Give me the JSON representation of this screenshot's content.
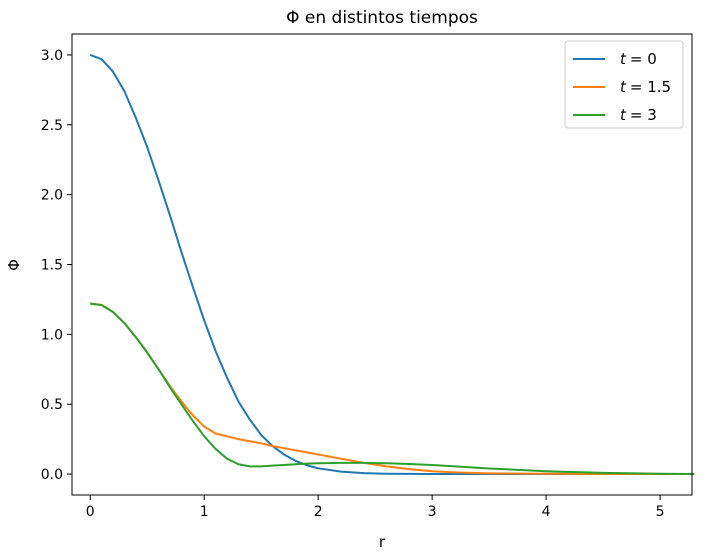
{
  "chart_data": {
    "type": "line",
    "title": "Φ en distintos tiempos",
    "xlabel": "r",
    "ylabel": "Φ",
    "xlim": [
      -0.16,
      5.28
    ],
    "ylim": [
      -0.15,
      3.15
    ],
    "xticks": [
      0,
      1,
      2,
      3,
      4,
      5
    ],
    "yticks": [
      0.0,
      0.5,
      1.0,
      1.5,
      2.0,
      2.5,
      3.0
    ],
    "xtick_labels": [
      "0",
      "1",
      "2",
      "3",
      "4",
      "5"
    ],
    "ytick_labels": [
      "0.0",
      "0.5",
      "1.0",
      "1.5",
      "2.0",
      "2.5",
      "3.0"
    ],
    "grid": false,
    "legend_position": "top-right",
    "series": [
      {
        "name": "t = 0",
        "legend_var": "t",
        "legend_value": "= 0",
        "color": "#1f77b4",
        "x": [
          0,
          0.1,
          0.2,
          0.3,
          0.4,
          0.5,
          0.6,
          0.7,
          0.8,
          0.9,
          1.0,
          1.1,
          1.2,
          1.3,
          1.4,
          1.5,
          1.6,
          1.7,
          1.8,
          1.9,
          2.0,
          2.2,
          2.4,
          2.6,
          2.8,
          3.0,
          3.5,
          4.0,
          4.5,
          5.0,
          5.3
        ],
        "y": [
          3.0,
          2.97,
          2.88,
          2.74,
          2.55,
          2.34,
          2.1,
          1.85,
          1.59,
          1.34,
          1.1,
          0.88,
          0.69,
          0.52,
          0.39,
          0.28,
          0.2,
          0.14,
          0.095,
          0.063,
          0.041,
          0.017,
          0.0065,
          0.0024,
          0.0008,
          0.0003,
          0.0,
          0.0,
          0.0,
          0.0,
          0.0
        ]
      },
      {
        "name": "t = 1.5",
        "legend_var": "t",
        "legend_value": "= 1.5",
        "color": "#ff7f0e",
        "x": [
          0,
          0.1,
          0.2,
          0.3,
          0.4,
          0.5,
          0.6,
          0.7,
          0.8,
          0.9,
          1.0,
          1.1,
          1.2,
          1.3,
          1.4,
          1.5,
          1.6,
          1.7,
          1.8,
          1.9,
          2.0,
          2.2,
          2.4,
          2.6,
          2.8,
          3.0,
          3.2,
          3.5,
          4.0,
          4.5,
          5.0,
          5.3
        ],
        "y": [
          1.22,
          1.21,
          1.16,
          1.08,
          0.98,
          0.87,
          0.75,
          0.63,
          0.52,
          0.42,
          0.34,
          0.29,
          0.27,
          0.25,
          0.235,
          0.22,
          0.2,
          0.185,
          0.17,
          0.155,
          0.14,
          0.11,
          0.08,
          0.055,
          0.035,
          0.02,
          0.012,
          0.005,
          0.002,
          0.001,
          0.0,
          0.0
        ]
      },
      {
        "name": "t = 3",
        "legend_var": "t",
        "legend_value": "= 3",
        "color": "#2ca02c",
        "x": [
          0,
          0.1,
          0.2,
          0.3,
          0.4,
          0.5,
          0.6,
          0.7,
          0.8,
          0.9,
          1.0,
          1.1,
          1.2,
          1.3,
          1.4,
          1.5,
          1.6,
          1.7,
          1.8,
          1.9,
          2.0,
          2.2,
          2.4,
          2.6,
          2.8,
          3.0,
          3.2,
          3.5,
          4.0,
          4.5,
          5.0,
          5.3
        ],
        "y": [
          1.22,
          1.21,
          1.16,
          1.08,
          0.98,
          0.87,
          0.75,
          0.62,
          0.5,
          0.38,
          0.27,
          0.18,
          0.11,
          0.07,
          0.055,
          0.055,
          0.06,
          0.065,
          0.07,
          0.075,
          0.077,
          0.08,
          0.08,
          0.077,
          0.072,
          0.065,
          0.055,
          0.04,
          0.02,
          0.008,
          0.002,
          0.0
        ]
      }
    ]
  }
}
